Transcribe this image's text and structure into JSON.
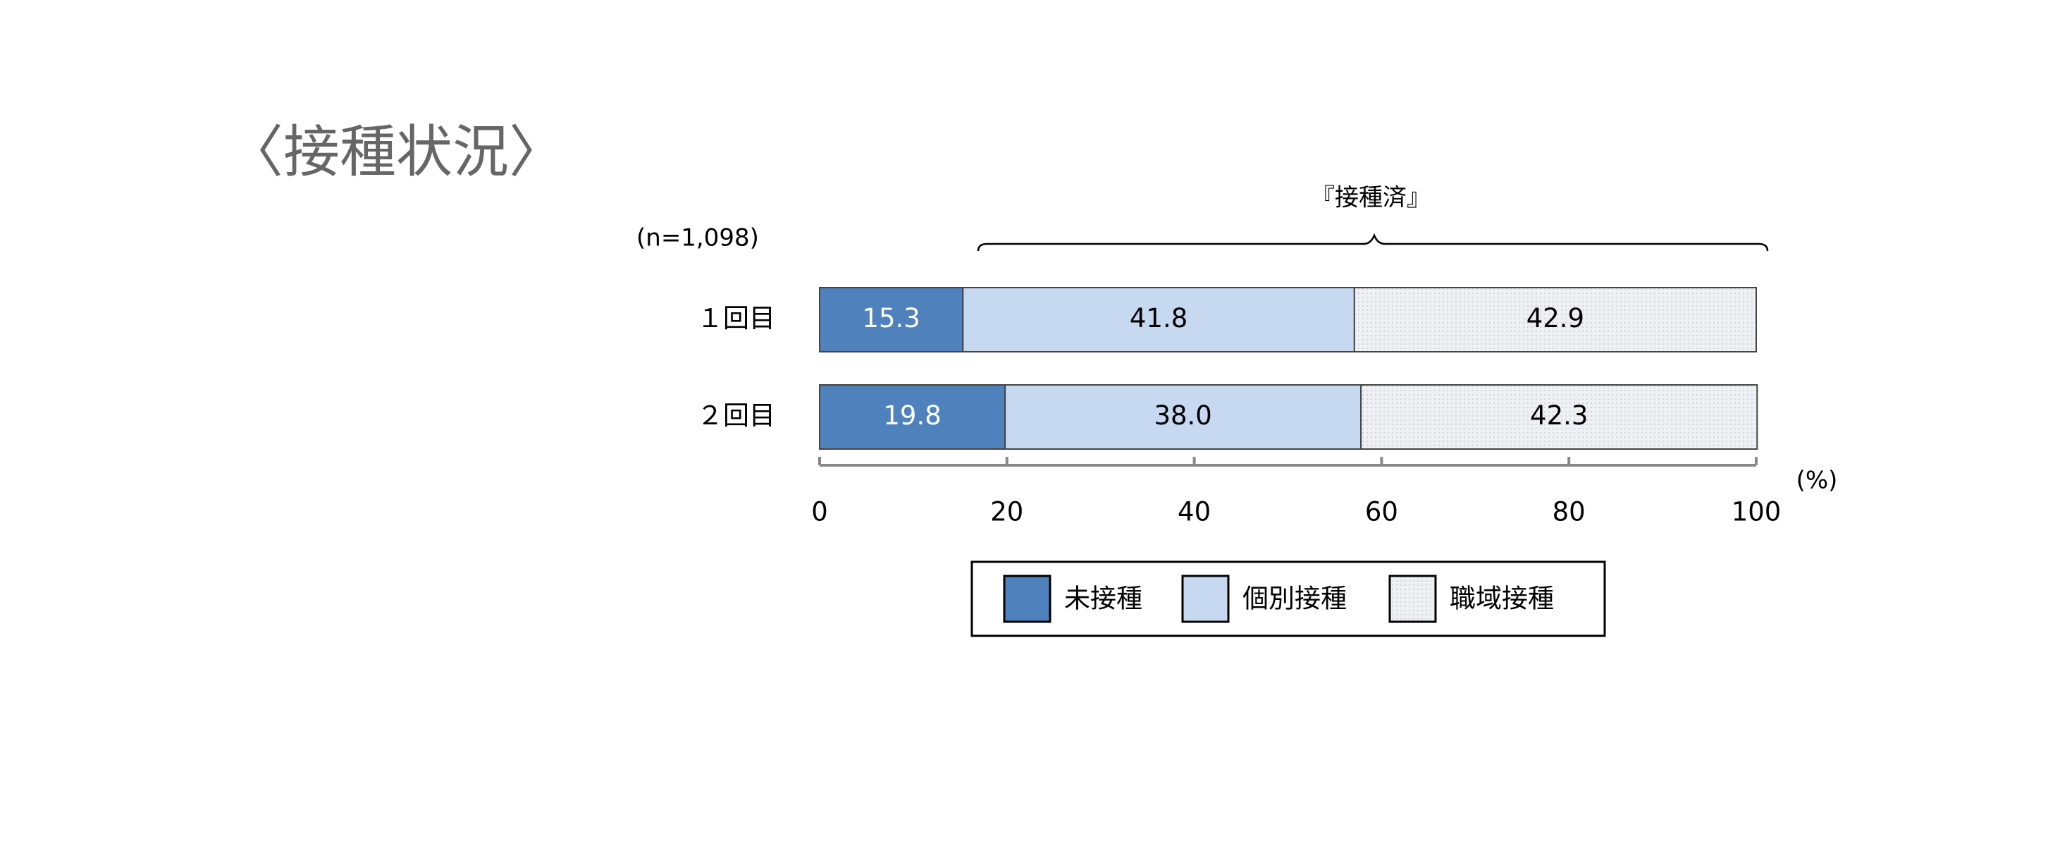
{
  "chart_data": {
    "type": "bar",
    "orientation": "horizontal",
    "stacked": true,
    "title": "〈接種状況〉",
    "subtitle": "(n=1,098)",
    "annotation": "『接種済』",
    "unit_label": "(%)",
    "categories": [
      "１回目",
      "２回目"
    ],
    "series": [
      {
        "name": "未接種",
        "color": "#4f81bd",
        "values": [
          15.3,
          19.8
        ],
        "value_labels": [
          "15.3",
          "19.8"
        ]
      },
      {
        "name": "個別接種",
        "color": "#c6d9f1",
        "values": [
          41.8,
          38.0
        ],
        "value_labels": [
          "41.8",
          "38.0"
        ]
      },
      {
        "name": "職域接種",
        "color": "#eef0f4",
        "values": [
          42.9,
          42.3
        ],
        "value_labels": [
          "42.9",
          "42.3"
        ]
      }
    ],
    "xlim": [
      0,
      100
    ],
    "xticks": [
      0,
      20,
      40,
      60,
      80,
      100
    ],
    "grid": false,
    "legend": "bottom"
  }
}
